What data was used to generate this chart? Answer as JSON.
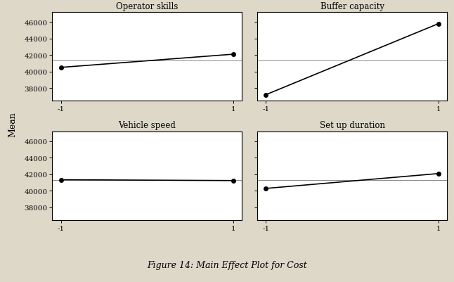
{
  "title": "Figure 14: Main Effect Plot for Cost",
  "ylabel": "Mean",
  "background_color": "#ddd8c8",
  "subplot_bg": "#ffffff",
  "subplots": [
    {
      "title": "Operator skills",
      "x": [
        -1,
        1
      ],
      "y": [
        40500,
        42100
      ],
      "mean_line": 41300
    },
    {
      "title": "Buffer capacity",
      "x": [
        -1,
        1
      ],
      "y": [
        37200,
        45800
      ],
      "mean_line": 41300
    },
    {
      "title": "Vehicle speed",
      "x": [
        -1,
        1
      ],
      "y": [
        41350,
        41250
      ],
      "mean_line": 41300
    },
    {
      "title": "Set up duration",
      "x": [
        -1,
        1
      ],
      "y": [
        40300,
        42100
      ],
      "mean_line": 41300
    }
  ],
  "ylim": [
    36500,
    47200
  ],
  "yticks": [
    38000,
    40000,
    42000,
    44000,
    46000
  ],
  "xticks": [
    -1,
    1
  ],
  "line_color": "black",
  "marker": "o",
  "marker_size": 4,
  "marker_color": "black",
  "line_width": 1.2,
  "title_fontsize": 8.5,
  "tick_fontsize": 7.5,
  "ylabel_fontsize": 9,
  "caption_fontsize": 9
}
